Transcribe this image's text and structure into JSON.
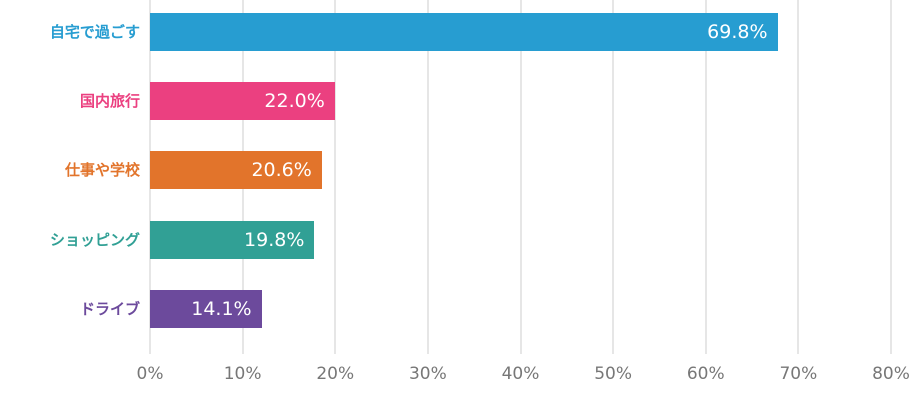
{
  "chart_data": {
    "type": "bar",
    "orientation": "horizontal",
    "title": "",
    "xlabel": "",
    "ylabel": "",
    "xlim": [
      0,
      80
    ],
    "grid": true,
    "x_ticks": [
      "0%",
      "10%",
      "20%",
      "30%",
      "40%",
      "50%",
      "60%",
      "70%",
      "80%"
    ],
    "categories": [
      "自宅で過ごす",
      "国内旅行",
      "仕事や学校",
      "ショッピング",
      "ドライブ"
    ],
    "values": [
      69.8,
      22.0,
      20.6,
      19.8,
      14.1
    ],
    "value_labels": [
      "69.8%",
      "22.0%",
      "20.6%",
      "19.8%",
      "14.1%"
    ],
    "colors": [
      "#279dd1",
      "#eb4080",
      "#e2742b",
      "#31a095",
      "#6c4a9c"
    ]
  }
}
